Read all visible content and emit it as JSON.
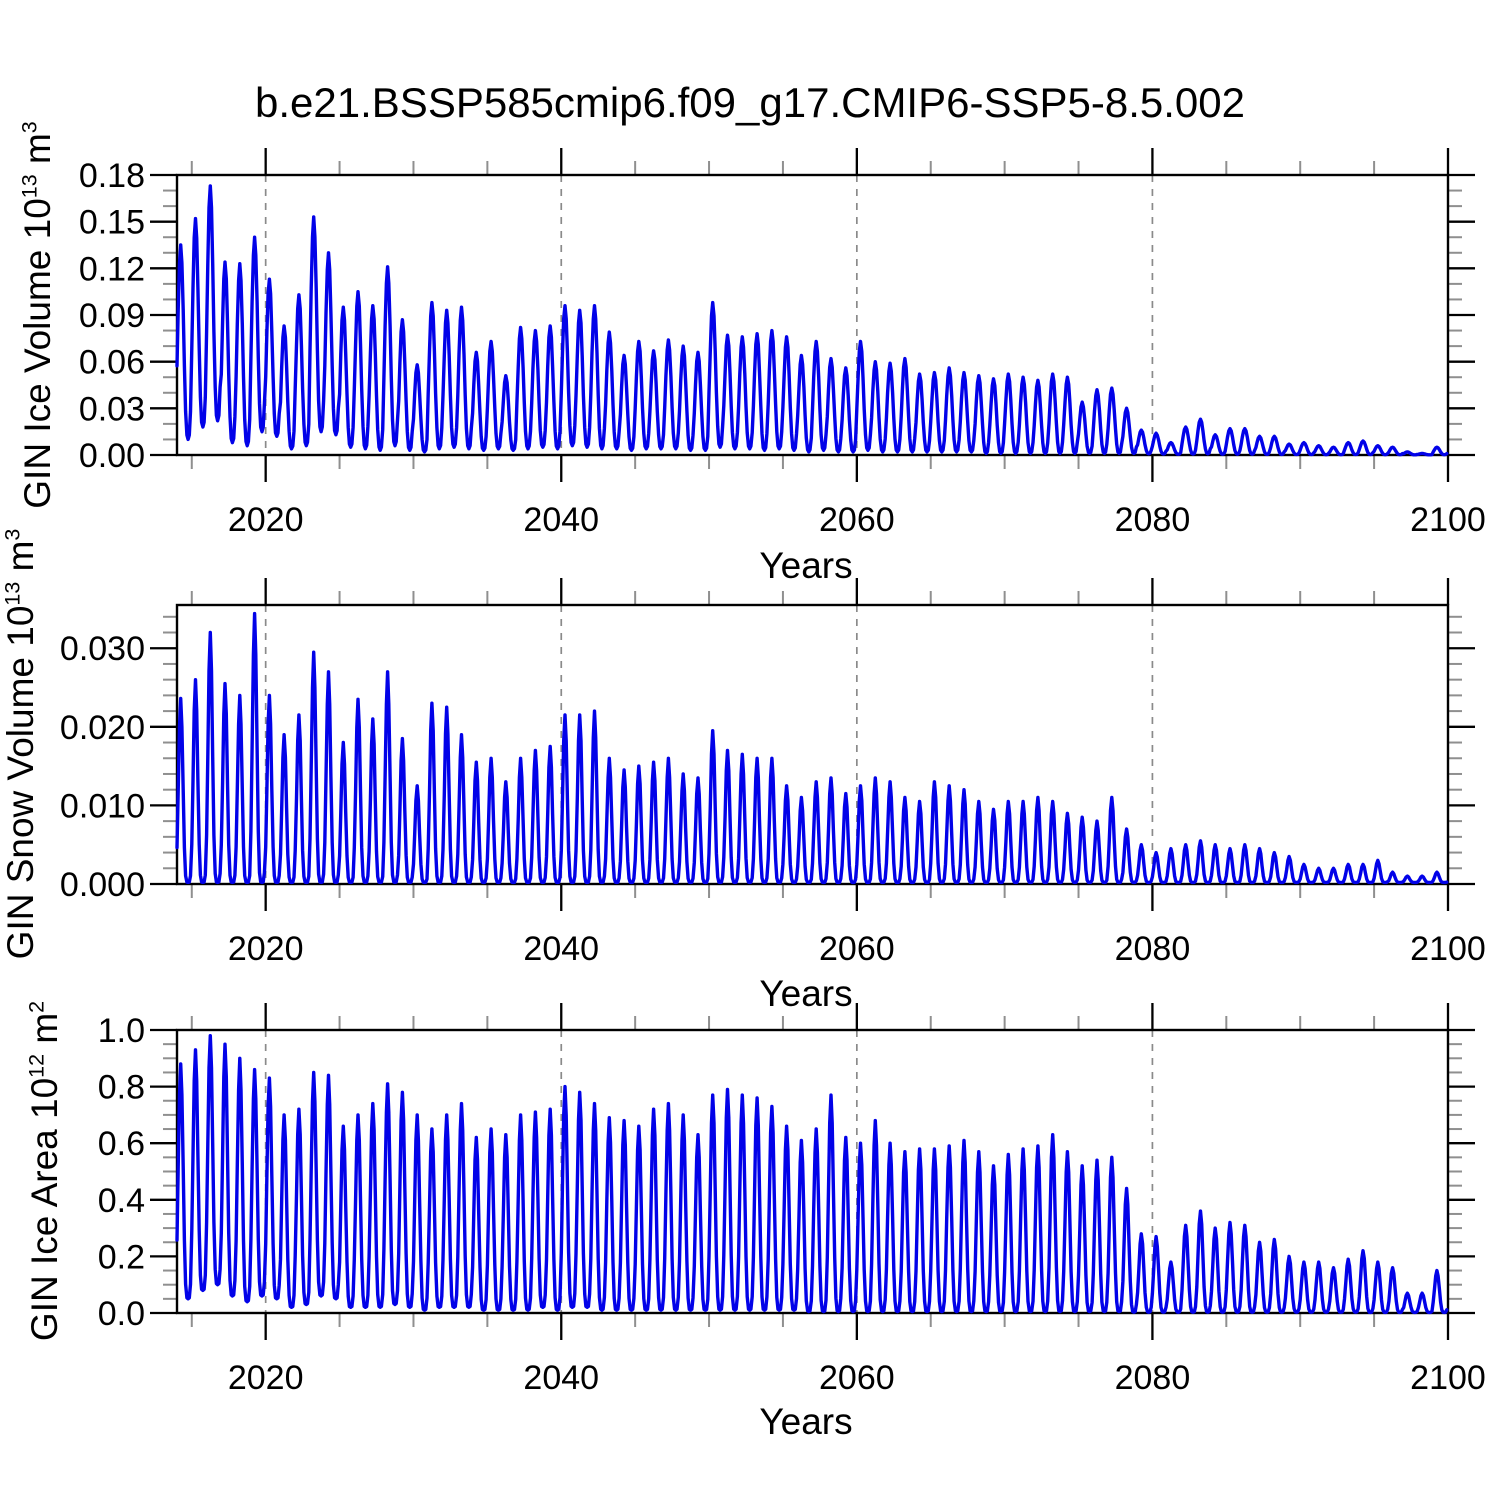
{
  "title": "b.e21.BSSP585cmip6.f09_g17.CMIP6-SSP5-8.5.002",
  "xlabel": "Years",
  "chart_data": {
    "type": "line",
    "line_color": "#0202e8",
    "grid_color": "#8a8a8a",
    "minor_tick_color": "#8f8f8f",
    "xlim": [
      2014,
      2100
    ],
    "x_major_ticks": [
      2020,
      2040,
      2060,
      2080,
      2100
    ],
    "x_major_tick_labels": [
      "2020",
      "2040",
      "2060",
      "2080",
      "2100"
    ],
    "x_minor_step": 5,
    "year_start": 2014,
    "grid_at_x_majors": true,
    "legend": "none",
    "panels": [
      {
        "name": "gin_ice_volume",
        "ylabel_main": "GIN Ice Volume 10",
        "ylabel_exp": "13",
        "ylabel_unit": " m",
        "ylabel_unit_exp": "3",
        "ylim": [
          0,
          0.18
        ],
        "ymajor": [
          0.0,
          0.03,
          0.06,
          0.09,
          0.12,
          0.15,
          0.18
        ],
        "ytick_labels": [
          "0.00",
          "0.03",
          "0.06",
          "0.09",
          "0.12",
          "0.15",
          "0.18"
        ],
        "yminor_step": 0.01,
        "sharp": 1.4,
        "peaks": [
          0.135,
          0.152,
          0.173,
          0.124,
          0.123,
          0.14,
          0.113,
          0.083,
          0.103,
          0.153,
          0.13,
          0.095,
          0.105,
          0.096,
          0.121,
          0.087,
          0.058,
          0.098,
          0.093,
          0.095,
          0.066,
          0.073,
          0.051,
          0.082,
          0.08,
          0.083,
          0.096,
          0.093,
          0.096,
          0.079,
          0.064,
          0.073,
          0.067,
          0.074,
          0.07,
          0.066,
          0.098,
          0.077,
          0.076,
          0.078,
          0.08,
          0.076,
          0.064,
          0.073,
          0.062,
          0.056,
          0.073,
          0.06,
          0.059,
          0.062,
          0.052,
          0.053,
          0.056,
          0.053,
          0.051,
          0.049,
          0.052,
          0.05,
          0.048,
          0.052,
          0.05,
          0.034,
          0.042,
          0.043,
          0.03,
          0.016,
          0.014,
          0.008,
          0.018,
          0.023,
          0.013,
          0.017,
          0.017,
          0.012,
          0.012,
          0.007,
          0.008,
          0.006,
          0.005,
          0.008,
          0.009,
          0.006,
          0.005,
          0.002,
          0.001,
          0.005
        ],
        "troughs": [
          0.01,
          0.018,
          0.022,
          0.008,
          0.006,
          0.015,
          0.012,
          0.004,
          0.006,
          0.015,
          0.013,
          0.005,
          0.004,
          0.003,
          0.006,
          0.003,
          0.002,
          0.004,
          0.005,
          0.004,
          0.003,
          0.004,
          0.003,
          0.004,
          0.005,
          0.004,
          0.006,
          0.005,
          0.004,
          0.004,
          0.003,
          0.004,
          0.004,
          0.004,
          0.003,
          0.003,
          0.005,
          0.004,
          0.004,
          0.003,
          0.004,
          0.003,
          0.002,
          0.003,
          0.002,
          0.002,
          0.003,
          0.002,
          0.002,
          0.002,
          0.002,
          0.002,
          0.002,
          0.002,
          0.001,
          0.001,
          0.001,
          0.001,
          0.001,
          0.001,
          0.001,
          0.001,
          0.001,
          0.001,
          0.001,
          0.0008,
          0.0006,
          0.0005,
          0.0006,
          0.0008,
          0.0005,
          0.0005,
          0.0005,
          0.0004,
          0.0004,
          0.0003,
          0.0003,
          0.0002,
          0.0002,
          0.0003,
          0.0003,
          0.0002,
          0.0002,
          0.0001,
          0.0001,
          0.0002
        ]
      },
      {
        "name": "gin_snow_volume",
        "ylabel_main": "GIN Snow Volume 10",
        "ylabel_exp": "13",
        "ylabel_unit": " m",
        "ylabel_unit_exp": "3",
        "ylim": [
          0,
          0.0355
        ],
        "ymajor": [
          0.0,
          0.01,
          0.02,
          0.03
        ],
        "ytick_labels": [
          "0.000",
          "0.010",
          "0.020",
          "0.030"
        ],
        "yminor_step": 0.002,
        "sharp": 2.4,
        "peaks": [
          0.0236,
          0.026,
          0.032,
          0.0255,
          0.024,
          0.0344,
          0.024,
          0.019,
          0.0215,
          0.0295,
          0.027,
          0.018,
          0.0235,
          0.021,
          0.027,
          0.0185,
          0.0125,
          0.023,
          0.0225,
          0.019,
          0.0155,
          0.016,
          0.013,
          0.016,
          0.017,
          0.0175,
          0.0215,
          0.0215,
          0.022,
          0.016,
          0.0145,
          0.015,
          0.0155,
          0.016,
          0.014,
          0.0135,
          0.0195,
          0.017,
          0.0165,
          0.016,
          0.016,
          0.0125,
          0.011,
          0.013,
          0.0135,
          0.0115,
          0.0125,
          0.0135,
          0.013,
          0.011,
          0.0105,
          0.013,
          0.0125,
          0.012,
          0.0105,
          0.0095,
          0.0105,
          0.0105,
          0.011,
          0.0105,
          0.009,
          0.0085,
          0.008,
          0.011,
          0.007,
          0.005,
          0.004,
          0.0045,
          0.005,
          0.0055,
          0.005,
          0.0045,
          0.005,
          0.0045,
          0.004,
          0.0035,
          0.0025,
          0.002,
          0.002,
          0.0025,
          0.0025,
          0.003,
          0.0015,
          0.001,
          0.001,
          0.0015
        ],
        "troughs": 0.0002
      },
      {
        "name": "gin_ice_area",
        "ylabel_main": "GIN Ice Area 10",
        "ylabel_exp": "12",
        "ylabel_unit": " m",
        "ylabel_unit_exp": "2",
        "ylim": [
          0,
          1.0
        ],
        "ymajor": [
          0.0,
          0.2,
          0.4,
          0.6,
          0.8,
          1.0
        ],
        "ytick_labels": [
          "0.0",
          "0.2",
          "0.4",
          "0.6",
          "0.8",
          "1.0"
        ],
        "yminor_step": 0.05,
        "sharp": 2.0,
        "peaks": [
          0.88,
          0.93,
          0.98,
          0.95,
          0.9,
          0.86,
          0.83,
          0.7,
          0.72,
          0.85,
          0.84,
          0.66,
          0.7,
          0.74,
          0.81,
          0.78,
          0.7,
          0.65,
          0.7,
          0.74,
          0.62,
          0.65,
          0.63,
          0.7,
          0.71,
          0.72,
          0.8,
          0.78,
          0.74,
          0.69,
          0.68,
          0.66,
          0.72,
          0.74,
          0.7,
          0.63,
          0.77,
          0.79,
          0.77,
          0.76,
          0.73,
          0.66,
          0.61,
          0.65,
          0.77,
          0.62,
          0.6,
          0.68,
          0.6,
          0.57,
          0.58,
          0.58,
          0.59,
          0.61,
          0.57,
          0.52,
          0.56,
          0.58,
          0.59,
          0.63,
          0.57,
          0.52,
          0.54,
          0.55,
          0.44,
          0.28,
          0.27,
          0.18,
          0.31,
          0.36,
          0.3,
          0.32,
          0.31,
          0.25,
          0.26,
          0.2,
          0.18,
          0.18,
          0.16,
          0.19,
          0.22,
          0.18,
          0.16,
          0.07,
          0.07,
          0.15
        ],
        "troughs": [
          0.05,
          0.08,
          0.1,
          0.06,
          0.04,
          0.06,
          0.05,
          0.02,
          0.03,
          0.06,
          0.05,
          0.02,
          0.02,
          0.02,
          0.03,
          0.02,
          0.01,
          0.02,
          0.02,
          0.02,
          0.01,
          0.01,
          0.01,
          0.01,
          0.02,
          0.01,
          0.02,
          0.02,
          0.01,
          0.01,
          0.01,
          0.01,
          0.01,
          0.01,
          0.01,
          0.01,
          0.01,
          0.01,
          0.01,
          0.01,
          0.01,
          0.01,
          0.005,
          0.005,
          0.005,
          0.005,
          0.005,
          0.005,
          0.005,
          0.005,
          0.005,
          0.005,
          0.005,
          0.005,
          0.005,
          0.005,
          0.005,
          0.005,
          0.005,
          0.005,
          0.005,
          0.005,
          0.005,
          0.005,
          0.003,
          0.003,
          0.003,
          0.003,
          0.003,
          0.003,
          0.003,
          0.003,
          0.003,
          0.003,
          0.003,
          0.003,
          0.003,
          0.003,
          0.003,
          0.003,
          0.002,
          0.002,
          0.002,
          0.002,
          0.002,
          0.002
        ]
      }
    ]
  }
}
